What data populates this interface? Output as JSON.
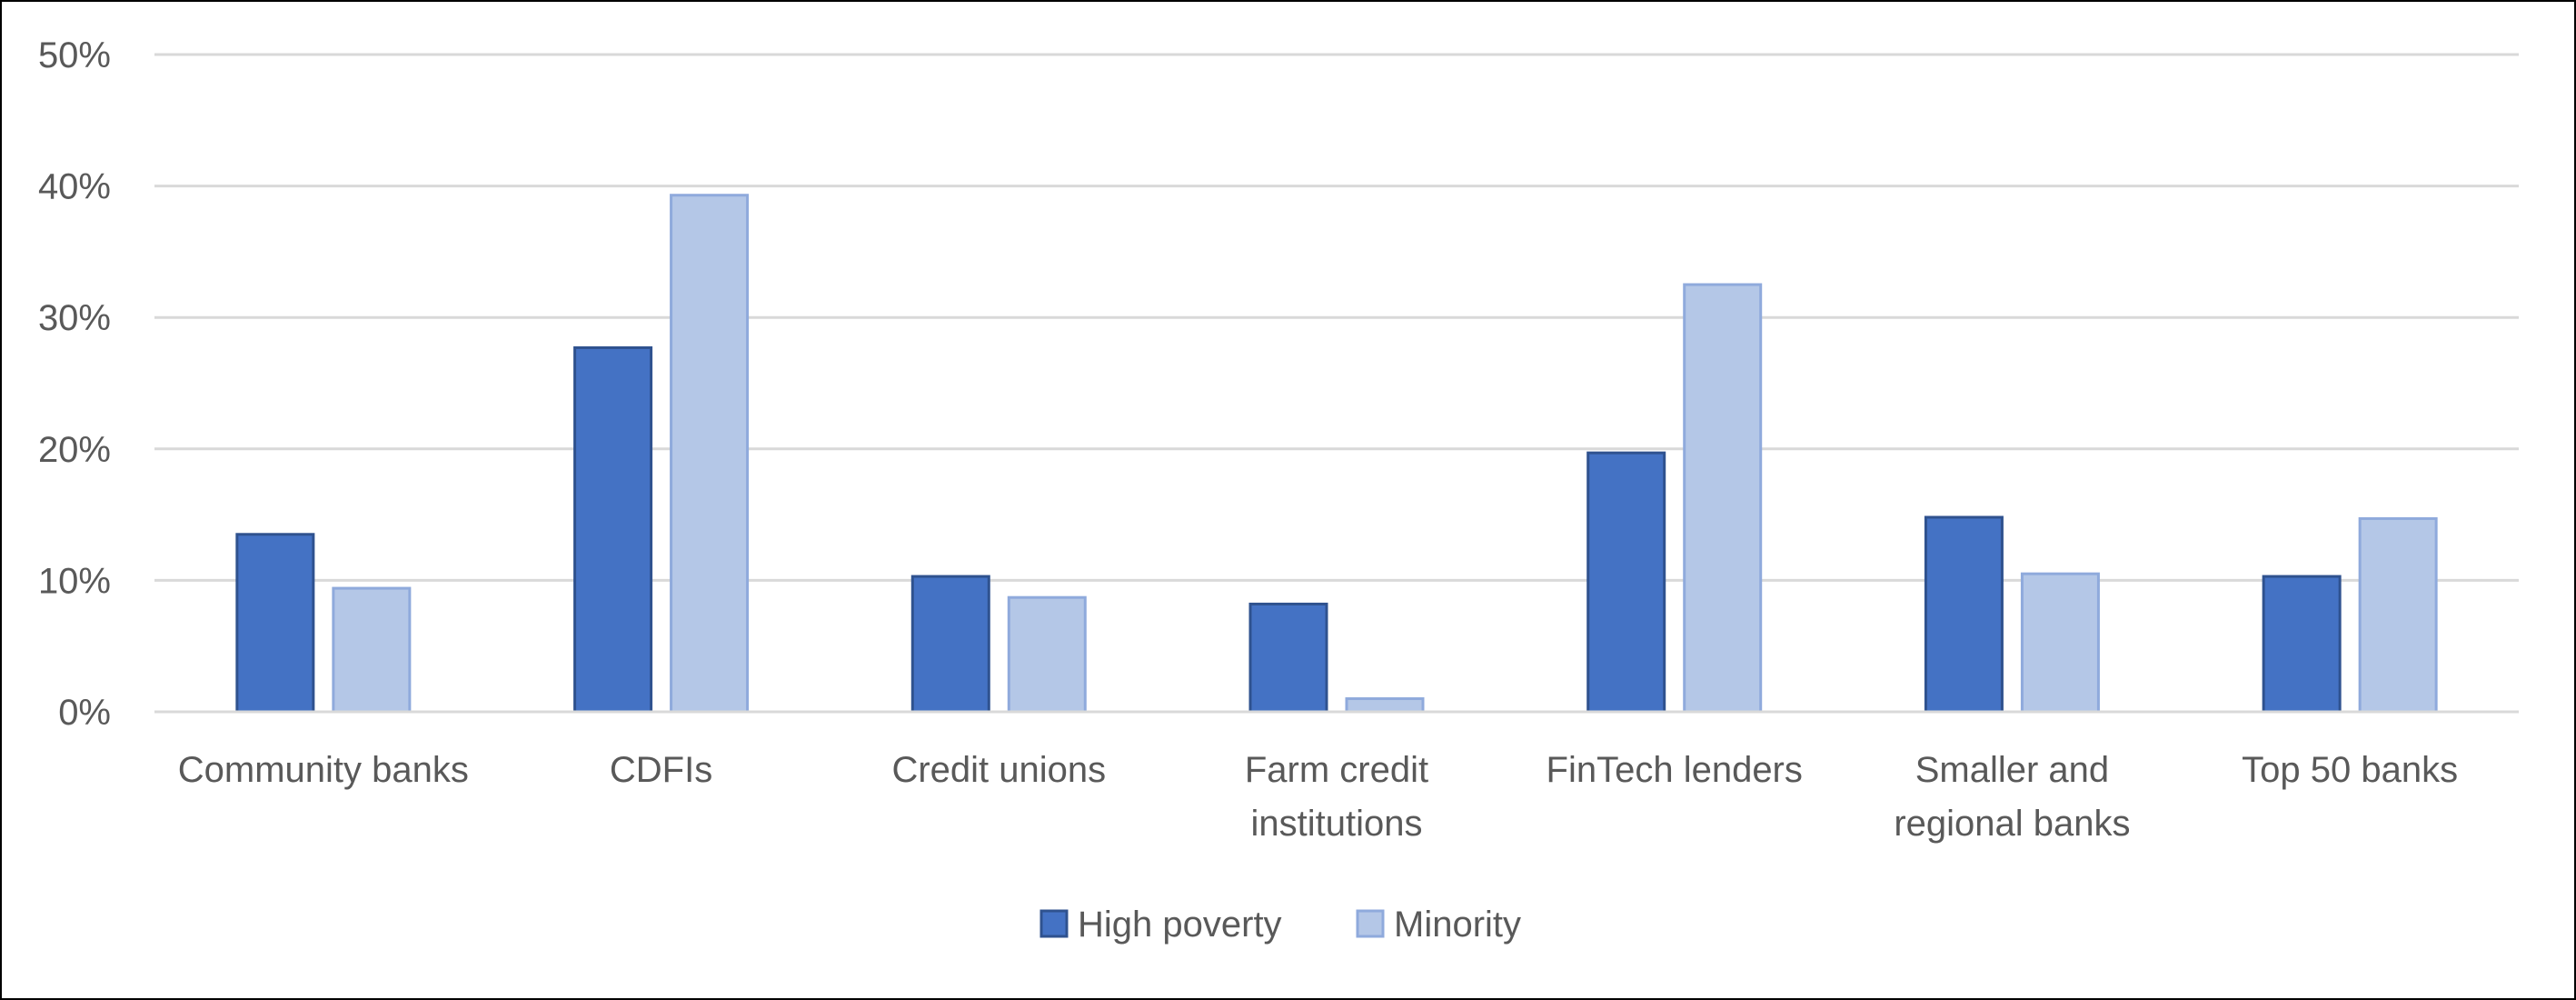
{
  "chart_data": {
    "type": "bar",
    "categories": [
      [
        "Community banks"
      ],
      [
        "CDFIs"
      ],
      [
        "Credit unions"
      ],
      [
        "Farm credit",
        "institutions"
      ],
      [
        "FinTech lenders"
      ],
      [
        "Smaller and",
        "regional banks"
      ],
      [
        "Top 50 banks"
      ]
    ],
    "series": [
      {
        "name": "High poverty",
        "color": "#4472C4",
        "stroke": "#2F528F",
        "values": [
          13.5,
          27.7,
          10.3,
          8.2,
          19.7,
          14.8,
          10.3
        ]
      },
      {
        "name": "Minority",
        "color": "#B4C7E7",
        "stroke": "#8FAADC",
        "values": [
          9.4,
          39.3,
          8.7,
          1.0,
          32.5,
          10.5,
          14.7
        ]
      }
    ],
    "ylim": [
      0,
      50
    ],
    "yticks": [
      0,
      10,
      20,
      30,
      40,
      50
    ],
    "ytick_labels": [
      "0%",
      "10%",
      "20%",
      "30%",
      "40%",
      "50%"
    ],
    "grid": true,
    "legend": "bottom-center",
    "title": "",
    "xlabel": "",
    "ylabel": ""
  }
}
